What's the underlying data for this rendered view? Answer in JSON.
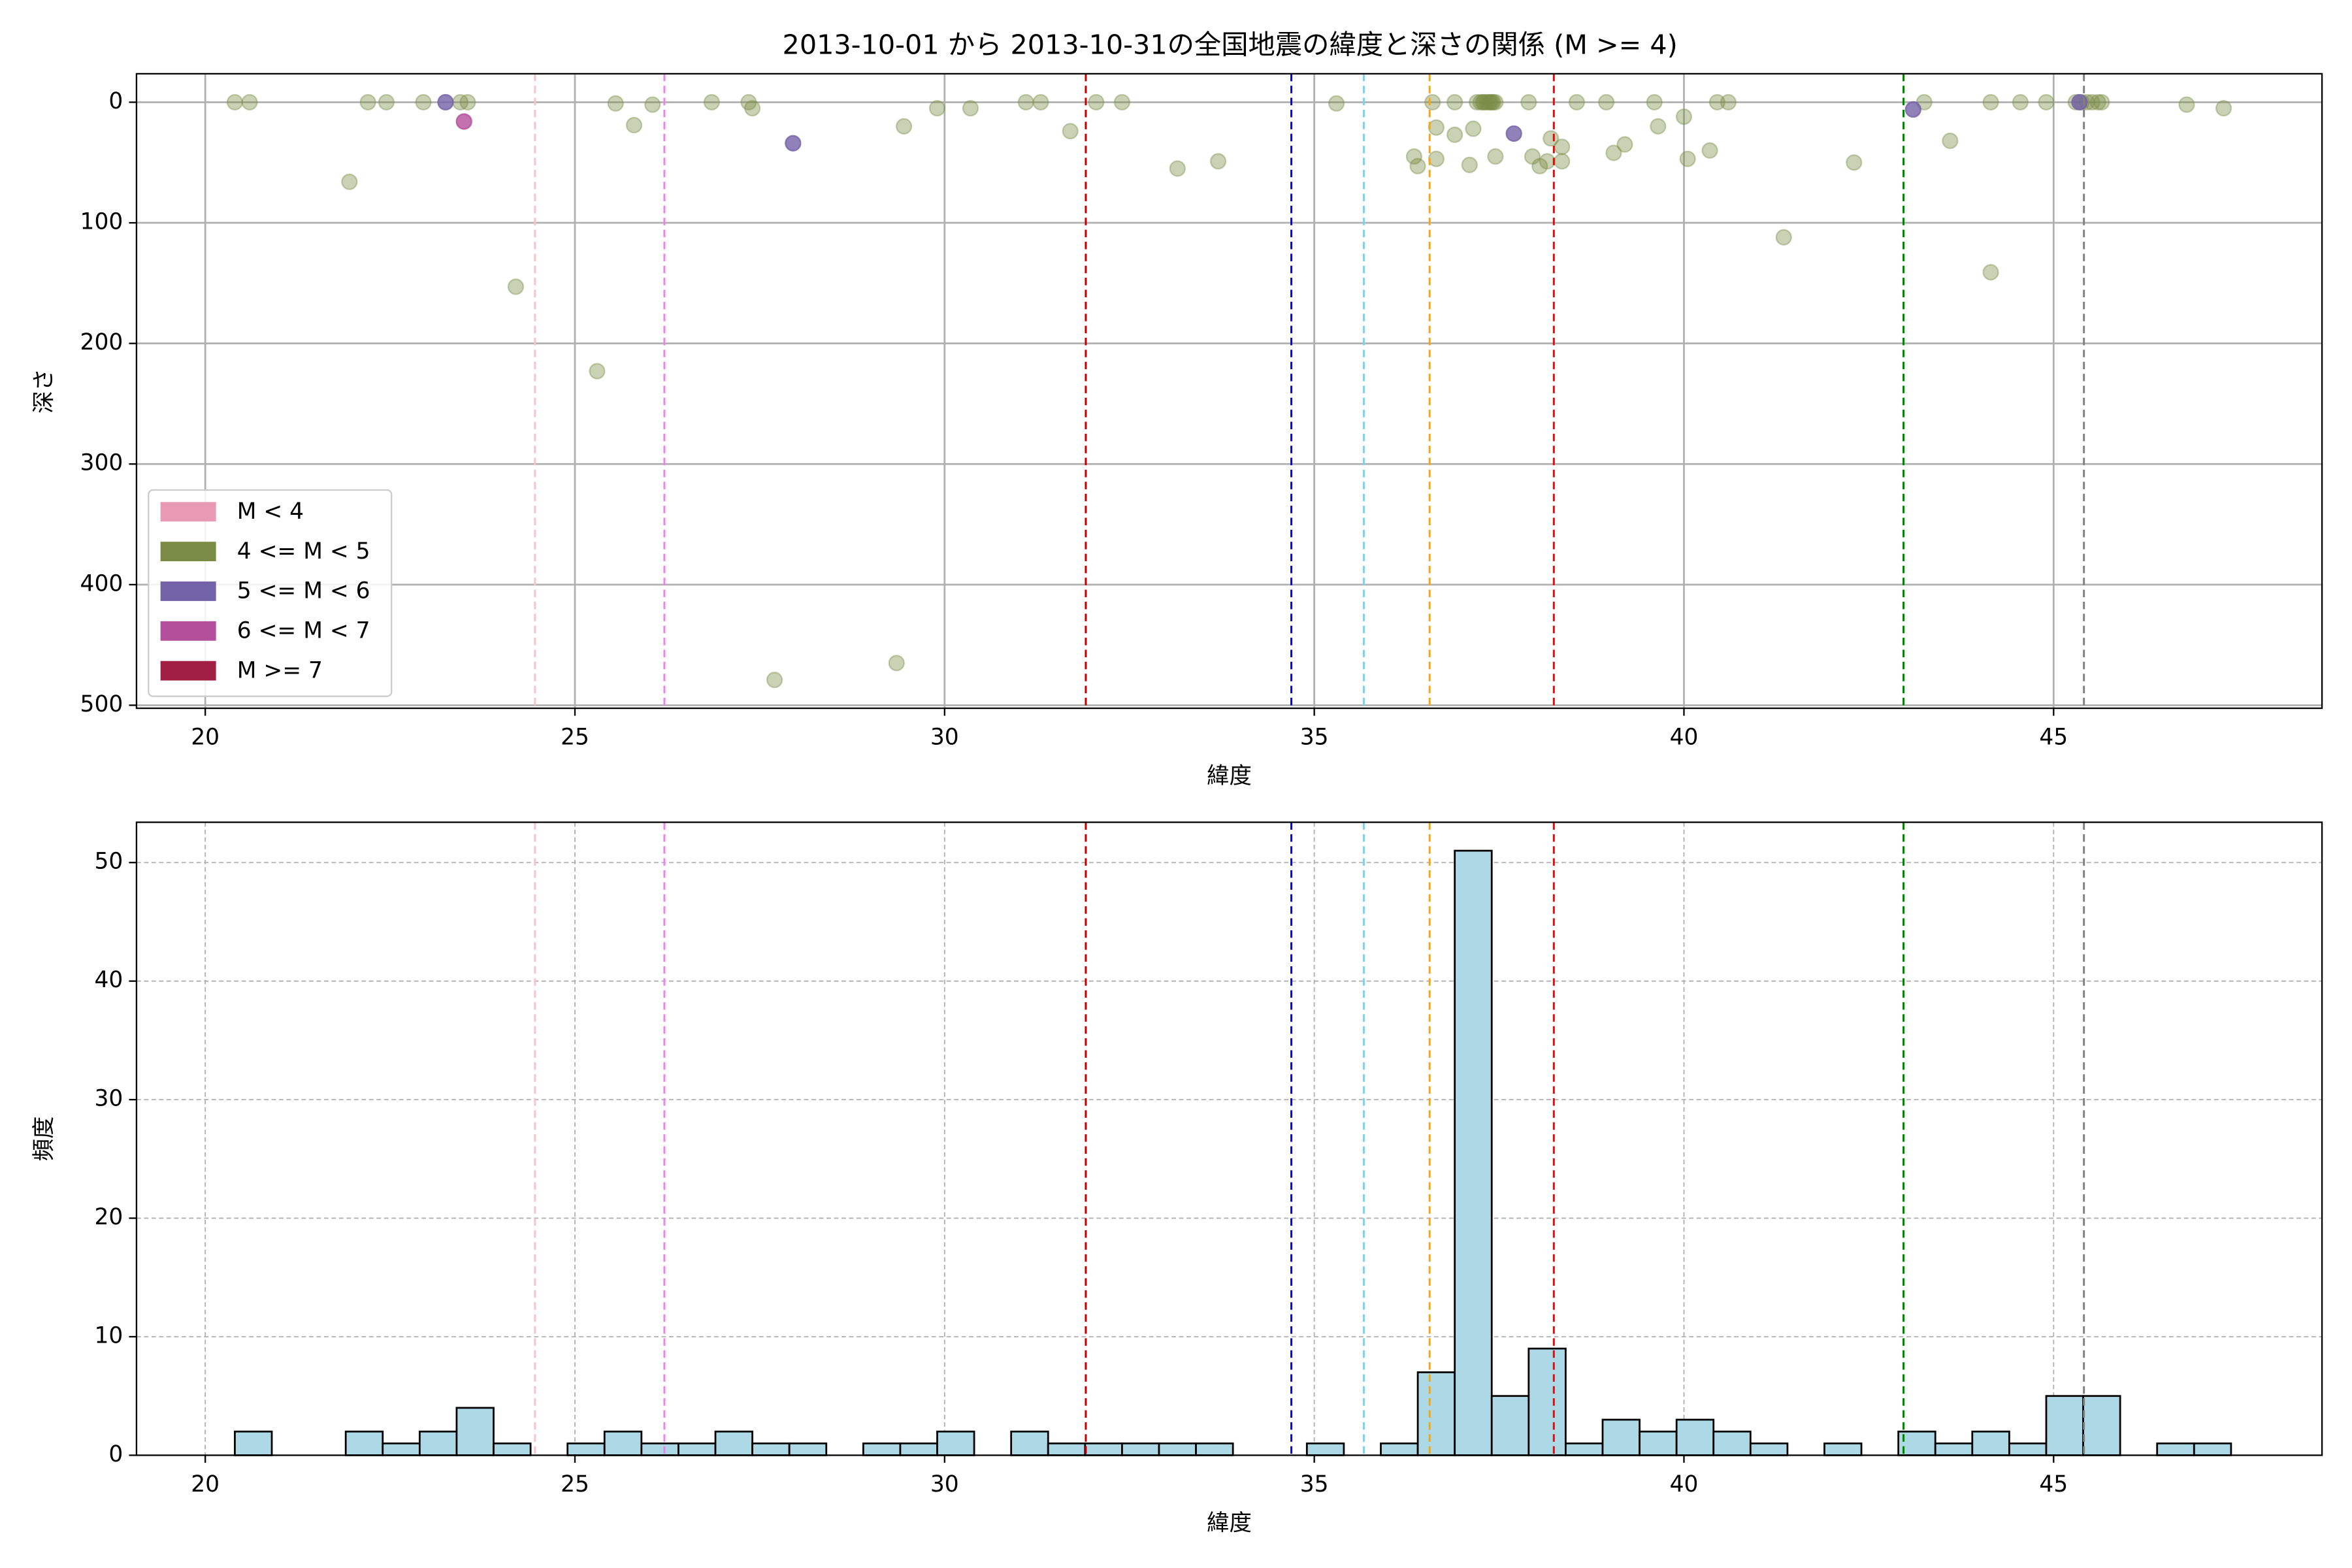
{
  "chart_data": [
    {
      "type": "scatter",
      "title": "2013-10-01 から 2013-10-31の全国地震の緯度と深さの関係 (M >= 4)",
      "xlabel": "緯度",
      "ylabel": "深さ",
      "xlim": [
        19.07,
        48.63
      ],
      "ylim": [
        502.5,
        -23.6
      ],
      "xticks": [
        20,
        25,
        30,
        35,
        40,
        45
      ],
      "yticks": [
        0,
        100,
        200,
        300,
        400,
        500
      ],
      "grid": "solid",
      "legend": "lower left",
      "series": [
        {
          "name": "M < 4",
          "color": "#e899b4",
          "alpha": 0.4,
          "x": [],
          "values": []
        },
        {
          "name": "4 <= M < 5",
          "color": "#7a8b45",
          "alpha": 0.4,
          "x": [
            20.4,
            20.6,
            21.95,
            22.2,
            22.45,
            22.95,
            23.45,
            23.55,
            24.2,
            25.3,
            25.55,
            25.8,
            26.05,
            26.85,
            27.35,
            27.4,
            27.7,
            29.35,
            29.45,
            29.9,
            30.35,
            31.1,
            31.3,
            31.7,
            32.05,
            32.4,
            33.15,
            33.7,
            35.3,
            36.35,
            36.4,
            36.6,
            36.65,
            36.65,
            36.9,
            36.9,
            37.1,
            37.15,
            37.2,
            37.25,
            37.28,
            37.3,
            37.33,
            37.36,
            37.38,
            37.4,
            37.42,
            37.45,
            37.45,
            37.9,
            37.95,
            38.05,
            38.15,
            38.2,
            38.35,
            38.35,
            38.55,
            38.95,
            39.05,
            39.2,
            39.6,
            39.65,
            40.0,
            40.05,
            40.35,
            40.45,
            40.6,
            41.35,
            42.3,
            43.25,
            43.6,
            44.15,
            44.15,
            44.55,
            44.9,
            45.3,
            45.38,
            45.45,
            45.52,
            45.6,
            45.65,
            46.8,
            47.3
          ],
          "values": [
            0,
            0,
            66,
            0,
            0,
            0,
            0,
            0,
            153,
            223,
            1,
            19,
            2,
            0,
            0,
            5,
            479,
            465,
            20,
            5,
            5,
            0,
            0,
            24,
            0,
            0,
            55,
            49,
            1,
            45,
            53,
            0,
            21,
            47,
            27,
            0,
            52,
            22,
            0,
            0,
            0,
            0,
            0,
            0,
            0,
            0,
            0,
            0,
            45,
            0,
            45,
            53,
            49,
            30,
            37,
            49,
            0,
            0,
            42,
            35,
            0,
            20,
            12,
            47,
            40,
            0,
            0,
            112,
            50,
            0,
            32,
            0,
            141,
            0,
            0,
            0,
            0,
            0,
            0,
            0,
            0,
            2,
            5
          ]
        },
        {
          "name": "5 <= M < 6",
          "color": "#7462a8",
          "alpha": 0.8,
          "x": [
            23.25,
            27.95,
            37.7,
            43.1,
            45.35
          ],
          "values": [
            0,
            34,
            26,
            6,
            0
          ]
        },
        {
          "name": "6 <= M < 7",
          "color": "#b44f9b",
          "alpha": 0.8,
          "x": [
            23.5
          ],
          "values": [
            16
          ]
        },
        {
          "name": "M >= 7",
          "color": "#a11f45",
          "alpha": 0.8,
          "x": [],
          "values": []
        }
      ],
      "vlines": [
        {
          "x": 24.46,
          "color": "pink"
        },
        {
          "x": 26.21,
          "color": "violet"
        },
        {
          "x": 31.91,
          "color": "#c00000"
        },
        {
          "x": 34.69,
          "color": "blue"
        },
        {
          "x": 35.67,
          "color": "skyblue"
        },
        {
          "x": 36.56,
          "color": "orange"
        },
        {
          "x": 38.24,
          "color": "red"
        },
        {
          "x": 42.97,
          "color": "green"
        },
        {
          "x": 45.41,
          "color": "gray"
        }
      ]
    },
    {
      "type": "histogram",
      "xlabel": "緯度",
      "ylabel": "頻度",
      "xlim": [
        19.07,
        48.63
      ],
      "ylim": [
        0,
        53.4
      ],
      "xticks": [
        20,
        25,
        30,
        35,
        40,
        45
      ],
      "yticks": [
        0,
        10,
        20,
        30,
        40,
        50
      ],
      "grid": "dashed",
      "color": "#add8e6",
      "edgecolor": "#000000",
      "bins": [
        20.4,
        20.9,
        21.4,
        21.9,
        22.4,
        22.9,
        23.4,
        23.9,
        24.4,
        24.9,
        25.4,
        25.9,
        26.4,
        26.9,
        27.4,
        27.9,
        28.4,
        28.9,
        29.4,
        29.9,
        30.4,
        30.9,
        31.4,
        31.9,
        32.4,
        32.9,
        33.4,
        33.9,
        34.4,
        34.9,
        35.4,
        35.9,
        36.4,
        36.9,
        37.4,
        37.9,
        38.4,
        38.9,
        39.4,
        39.9,
        40.4,
        40.9,
        41.4,
        41.9,
        42.4,
        42.9,
        43.4,
        43.9,
        44.4,
        44.9,
        45.4,
        45.9,
        46.4,
        46.9,
        47.4
      ],
      "values": [
        2,
        0,
        0,
        2,
        1,
        2,
        4,
        1,
        0,
        1,
        2,
        1,
        1,
        2,
        1,
        1,
        0,
        1,
        1,
        2,
        0,
        2,
        1,
        1,
        1,
        1,
        1,
        0,
        0,
        1,
        0,
        1,
        7,
        51,
        5,
        9,
        1,
        3,
        2,
        3,
        2,
        1,
        0,
        1,
        0,
        2,
        1,
        2,
        1,
        5,
        5,
        0,
        1,
        1
      ],
      "vlines": [
        {
          "x": 24.46,
          "color": "pink"
        },
        {
          "x": 26.21,
          "color": "violet"
        },
        {
          "x": 31.91,
          "color": "#c00000"
        },
        {
          "x": 34.69,
          "color": "blue"
        },
        {
          "x": 35.67,
          "color": "skyblue"
        },
        {
          "x": 36.56,
          "color": "orange"
        },
        {
          "x": 38.24,
          "color": "red"
        },
        {
          "x": 42.97,
          "color": "green"
        },
        {
          "x": 45.41,
          "color": "gray"
        }
      ]
    }
  ]
}
